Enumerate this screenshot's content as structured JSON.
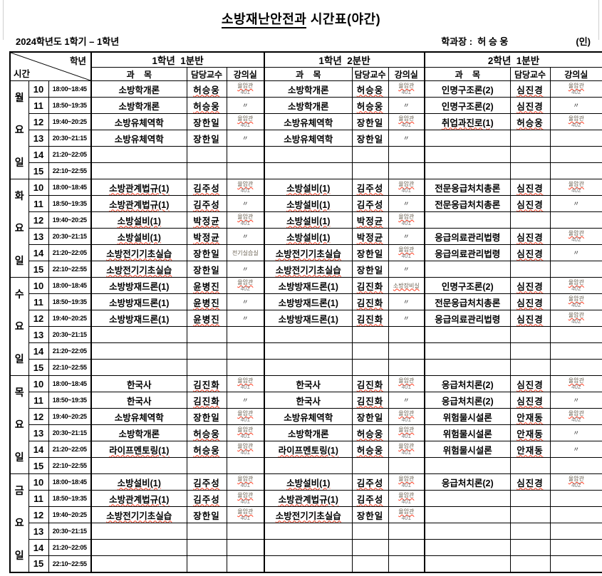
{
  "page": {
    "title_main": "소방재난안전과",
    "title_suffix": " 시간표(야간)",
    "term": "2024학년도 1학기 – 1학년",
    "dept_head": "학과장 :  허 승 웅",
    "seal": "(인)"
  },
  "colors": {
    "grid": "#000000",
    "spellcheck_wavy": "#ff3b1f",
    "room_text": "#6b6152",
    "room_number": "#7f7f7f",
    "background": "#ffffff"
  },
  "table": {
    "corner_top": "학년",
    "corner_bottom": "시간",
    "groups": [
      "1학년  1분반",
      "1학년  2분반",
      "2학년  1분반"
    ],
    "columns": {
      "subject": "과    목",
      "professor": "담당교수",
      "room": "강의실"
    },
    "ditto_mark": "〃",
    "periods": [
      {
        "no": "10",
        "time": "18:00~18:45"
      },
      {
        "no": "11",
        "time": "18:50~19:35"
      },
      {
        "no": "12",
        "time": "19:40~20:25"
      },
      {
        "no": "13",
        "time": "20:30~21:15"
      },
      {
        "no": "14",
        "time": "21:20~22:05"
      },
      {
        "no": "15",
        "time": "22:10~22:55"
      }
    ],
    "days": [
      {
        "name": "월요일",
        "chars": [
          "월",
          "요",
          "일"
        ],
        "rows": [
          [
            {
              "subject": "소방학개론",
              "subject_wavy": false,
              "professor": "허승웅",
              "professor_wavy": true,
              "room": {
                "label": "율암관",
                "number": "401",
                "wavy": true
              }
            },
            {
              "subject": "소방학개론",
              "subject_wavy": false,
              "professor": "허승웅",
              "professor_wavy": true,
              "room": {
                "label": "율암관",
                "number": "401",
                "wavy": true
              }
            },
            {
              "subject": "인명구조론(2)",
              "subject_wavy": false,
              "professor": "심진경",
              "professor_wavy": true,
              "room": {
                "label": "율암관",
                "number": "402",
                "wavy": true
              }
            }
          ],
          [
            {
              "subject": "소방학개론",
              "subject_wavy": false,
              "professor": "허승웅",
              "professor_wavy": true,
              "room": {
                "ditto": true
              }
            },
            {
              "subject": "소방학개론",
              "subject_wavy": false,
              "professor": "허승웅",
              "professor_wavy": true,
              "room": {
                "ditto": true
              }
            },
            {
              "subject": "인명구조론(2)",
              "subject_wavy": false,
              "professor": "심진경",
              "professor_wavy": true,
              "room": {
                "ditto": true
              }
            }
          ],
          [
            {
              "subject": "소방유체역학",
              "subject_wavy": false,
              "professor": "장한일",
              "professor_wavy": false,
              "room": {
                "label": "율암관",
                "number": "401",
                "wavy": true
              }
            },
            {
              "subject": "소방유체역학",
              "subject_wavy": false,
              "professor": "장한일",
              "professor_wavy": false,
              "room": {
                "label": "율암관",
                "number": "401",
                "wavy": true
              }
            },
            {
              "subject": "취업과진로(1)",
              "subject_wavy": true,
              "professor": "허승웅",
              "professor_wavy": true,
              "room": {
                "label": "율암관",
                "number": "402",
                "wavy": true
              }
            }
          ],
          [
            {
              "subject": "소방유체역학",
              "subject_wavy": false,
              "professor": "장한일",
              "professor_wavy": false,
              "room": {
                "ditto": true
              }
            },
            {
              "subject": "소방유체역학",
              "subject_wavy": false,
              "professor": "장한일",
              "professor_wavy": false,
              "room": {
                "ditto": true
              }
            },
            null
          ],
          [
            null,
            null,
            null
          ],
          [
            null,
            null,
            null
          ]
        ]
      },
      {
        "name": "화요일",
        "chars": [
          "화",
          "요",
          "일"
        ],
        "rows": [
          [
            {
              "subject": "소방관계법규(1)",
              "subject_wavy": true,
              "professor": "김주성",
              "professor_wavy": true,
              "room": {
                "label": "율암관",
                "number": "401",
                "wavy": true
              }
            },
            {
              "subject": "소방설비(1)",
              "subject_wavy": true,
              "professor": "김주성",
              "professor_wavy": true,
              "room": {
                "label": "율암관",
                "number": "401",
                "wavy": true
              }
            },
            {
              "subject": "전문응급처치총론",
              "subject_wavy": false,
              "professor": "심진경",
              "professor_wavy": true,
              "room": {
                "label": "율암관",
                "number": "402",
                "wavy": true
              }
            }
          ],
          [
            {
              "subject": "소방관계법규(1)",
              "subject_wavy": true,
              "professor": "김주성",
              "professor_wavy": true,
              "room": {
                "ditto": true
              }
            },
            {
              "subject": "소방설비(1)",
              "subject_wavy": true,
              "professor": "김주성",
              "professor_wavy": true,
              "room": {
                "ditto": true
              }
            },
            {
              "subject": "전문응급처치총론",
              "subject_wavy": false,
              "professor": "심진경",
              "professor_wavy": true,
              "room": {
                "ditto": true
              }
            }
          ],
          [
            {
              "subject": "소방설비(1)",
              "subject_wavy": true,
              "professor": "박정균",
              "professor_wavy": true,
              "room": {
                "label": "율암관",
                "number": "401",
                "wavy": true
              }
            },
            {
              "subject": "소방설비(1)",
              "subject_wavy": true,
              "professor": "박정균",
              "professor_wavy": true,
              "room": {
                "label": "율암관",
                "number": "401",
                "wavy": true
              }
            },
            null
          ],
          [
            {
              "subject": "소방설비(1)",
              "subject_wavy": true,
              "professor": "박정균",
              "professor_wavy": true,
              "room": {
                "ditto": true
              }
            },
            {
              "subject": "소방설비(1)",
              "subject_wavy": true,
              "professor": "박정균",
              "professor_wavy": true,
              "room": {
                "ditto": true
              }
            },
            {
              "subject": "응급의료관리법령",
              "subject_wavy": false,
              "professor": "심진경",
              "professor_wavy": true,
              "room": {
                "label": "율암관",
                "number": "402",
                "wavy": true
              }
            }
          ],
          [
            {
              "subject": "소방전기기초실습",
              "subject_wavy": true,
              "professor": "장한일",
              "professor_wavy": false,
              "room": {
                "label": "전기실습실",
                "wavy": false
              }
            },
            {
              "subject": "소방전기기초실습",
              "subject_wavy": true,
              "professor": "장한일",
              "professor_wavy": false,
              "room": {
                "label": "율암관",
                "number": "401",
                "wavy": true
              }
            },
            {
              "subject": "응급의료관리법령",
              "subject_wavy": false,
              "professor": "심진경",
              "professor_wavy": true,
              "room": {
                "ditto": true
              }
            }
          ],
          [
            {
              "subject": "소방전기기초실습",
              "subject_wavy": true,
              "professor": "장한일",
              "professor_wavy": false,
              "room": {
                "ditto": true
              }
            },
            {
              "subject": "소방전기기초실습",
              "subject_wavy": true,
              "professor": "장한일",
              "professor_wavy": false,
              "room": {
                "ditto": true
              }
            },
            null
          ]
        ]
      },
      {
        "name": "수요일",
        "chars": [
          "수",
          "요",
          "일"
        ],
        "rows": [
          [
            {
              "subject": "소방방재드론(1)",
              "subject_wavy": false,
              "professor": "윤병진",
              "professor_wavy": true,
              "room": {
                "label": "율암관",
                "number": "402",
                "wavy": true
              }
            },
            {
              "subject": "소방방재드론(1)",
              "subject_wavy": false,
              "professor": "김진화",
              "professor_wavy": true,
              "room": {
                "label": "소방장비실",
                "wavy": true
              }
            },
            {
              "subject": "인명구조론(2)",
              "subject_wavy": false,
              "professor": "심진경",
              "professor_wavy": true,
              "room": {
                "label": "율암관",
                "number": "402",
                "wavy": true
              }
            }
          ],
          [
            {
              "subject": "소방방재드론(1)",
              "subject_wavy": false,
              "professor": "윤병진",
              "professor_wavy": true,
              "room": {
                "ditto": true
              }
            },
            {
              "subject": "소방방재드론(1)",
              "subject_wavy": false,
              "professor": "김진화",
              "professor_wavy": true,
              "room": {
                "ditto": true
              }
            },
            {
              "subject": "전문응급처치총론",
              "subject_wavy": false,
              "professor": "심진경",
              "professor_wavy": true,
              "room": {
                "label": "율암관",
                "number": "402",
                "wavy": true
              }
            }
          ],
          [
            {
              "subject": "소방방재드론(1)",
              "subject_wavy": false,
              "professor": "윤병진",
              "professor_wavy": true,
              "room": {
                "ditto": true
              }
            },
            {
              "subject": "소방방재드론(1)",
              "subject_wavy": false,
              "professor": "김진화",
              "professor_wavy": true,
              "room": {
                "ditto": true
              }
            },
            {
              "subject": "응급의료관리법령",
              "subject_wavy": false,
              "professor": "심진경",
              "professor_wavy": true,
              "room": {
                "label": "율암관",
                "number": "402",
                "wavy": true
              }
            }
          ],
          [
            null,
            null,
            null
          ],
          [
            null,
            null,
            null
          ],
          [
            null,
            null,
            null
          ]
        ]
      },
      {
        "name": "목요일",
        "chars": [
          "목",
          "요",
          "일"
        ],
        "rows": [
          [
            {
              "subject": "한국사",
              "subject_wavy": false,
              "professor": "김진화",
              "professor_wavy": true,
              "room": {
                "label": "율암관",
                "number": "401",
                "wavy": true
              }
            },
            {
              "subject": "한국사",
              "subject_wavy": false,
              "professor": "김진화",
              "professor_wavy": true,
              "room": {
                "label": "율암관",
                "number": "401",
                "wavy": true
              }
            },
            {
              "subject": "응급처치론(2)",
              "subject_wavy": false,
              "professor": "심진경",
              "professor_wavy": true,
              "room": {
                "label": "율암관",
                "number": "402",
                "wavy": true
              }
            }
          ],
          [
            {
              "subject": "한국사",
              "subject_wavy": false,
              "professor": "김진화",
              "professor_wavy": true,
              "room": {
                "ditto": true
              }
            },
            {
              "subject": "한국사",
              "subject_wavy": false,
              "professor": "김진화",
              "professor_wavy": true,
              "room": {
                "ditto": true
              }
            },
            {
              "subject": "응급처치론(2)",
              "subject_wavy": false,
              "professor": "심진경",
              "professor_wavy": true,
              "room": {
                "ditto": true
              }
            }
          ],
          [
            {
              "subject": "소방유체역학",
              "subject_wavy": false,
              "professor": "장한일",
              "professor_wavy": false,
              "room": {
                "label": "율암관",
                "number": "401",
                "wavy": true
              }
            },
            {
              "subject": "소방유체역학",
              "subject_wavy": false,
              "professor": "장한일",
              "professor_wavy": false,
              "room": {
                "label": "율암관",
                "number": "401",
                "wavy": true
              }
            },
            {
              "subject": "위험물시설론",
              "subject_wavy": false,
              "professor": "안재동",
              "professor_wavy": true,
              "room": {
                "label": "율암관",
                "number": "402",
                "wavy": true
              }
            }
          ],
          [
            {
              "subject": "소방학개론",
              "subject_wavy": false,
              "professor": "허승웅",
              "professor_wavy": true,
              "room": {
                "label": "율암관",
                "number": "401",
                "wavy": true
              }
            },
            {
              "subject": "소방학개론",
              "subject_wavy": false,
              "professor": "허승웅",
              "professor_wavy": true,
              "room": {
                "label": "율암관",
                "number": "401",
                "wavy": true
              }
            },
            {
              "subject": "위험물시설론",
              "subject_wavy": false,
              "professor": "안재동",
              "professor_wavy": true,
              "room": {
                "ditto": true
              }
            }
          ],
          [
            {
              "subject": "라이프멘토링(1)",
              "subject_wavy": true,
              "professor": "허승웅",
              "professor_wavy": true,
              "room": {
                "label": "율암관",
                "number": "401",
                "wavy": true
              }
            },
            {
              "subject": "라이프멘토링(1)",
              "subject_wavy": true,
              "professor": "허승웅",
              "professor_wavy": true,
              "room": {
                "label": "율암관",
                "number": "401",
                "wavy": true
              }
            },
            {
              "subject": "위험물시설론",
              "subject_wavy": false,
              "professor": "안재동",
              "professor_wavy": true,
              "room": {
                "ditto": true
              }
            }
          ],
          [
            null,
            null,
            null
          ]
        ]
      },
      {
        "name": "금요일",
        "chars": [
          "금",
          "요",
          "일"
        ],
        "rows": [
          [
            {
              "subject": "소방설비(1)",
              "subject_wavy": true,
              "professor": "김주성",
              "professor_wavy": true,
              "room": {
                "label": "율암관",
                "number": "401",
                "wavy": true
              }
            },
            {
              "subject": "소방설비(1)",
              "subject_wavy": true,
              "professor": "김주성",
              "professor_wavy": true,
              "room": {
                "label": "율암관",
                "number": "401",
                "wavy": true
              }
            },
            {
              "subject": "응급처치론(2)",
              "subject_wavy": false,
              "professor": "심진경",
              "professor_wavy": true,
              "room": {
                "label": "율암관",
                "number": "402",
                "wavy": true
              }
            }
          ],
          [
            {
              "subject": "소방관계법규(1)",
              "subject_wavy": true,
              "professor": "김주성",
              "professor_wavy": true,
              "room": {
                "label": "율암관",
                "number": "401",
                "wavy": true
              }
            },
            {
              "subject": "소방관계법규(1)",
              "subject_wavy": true,
              "professor": "김주성",
              "professor_wavy": true,
              "room": {
                "label": "율암관",
                "number": "401",
                "wavy": true
              }
            },
            null
          ],
          [
            {
              "subject": "소방전기기초실습",
              "subject_wavy": true,
              "professor": "장한일",
              "professor_wavy": false,
              "room": {
                "label": "율암관",
                "number": "401",
                "wavy": true
              }
            },
            {
              "subject": "소방전기기초실습",
              "subject_wavy": true,
              "professor": "장한일",
              "professor_wavy": false,
              "room": {
                "label": "율암관",
                "number": "401",
                "wavy": true
              }
            },
            null
          ],
          [
            null,
            null,
            null
          ],
          [
            null,
            null,
            null
          ],
          [
            null,
            null,
            null
          ]
        ]
      }
    ]
  }
}
